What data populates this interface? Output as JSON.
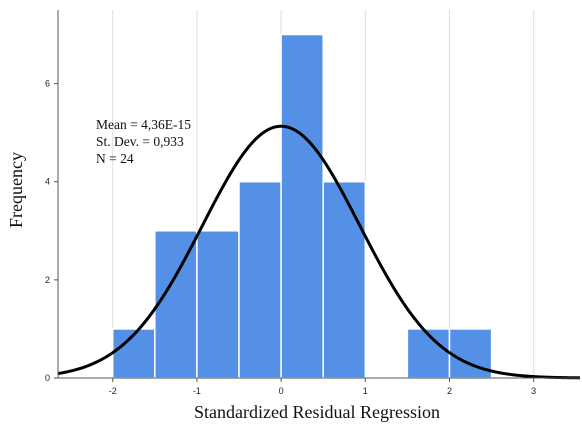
{
  "chart_data": {
    "type": "bar",
    "xlabel": "Standardized Residual Regression",
    "ylabel": "Frequency",
    "x_ticks": [
      "-2",
      "-1",
      "0",
      "1",
      "2",
      "3"
    ],
    "y_ticks": [
      "0",
      "2",
      "4",
      "6"
    ],
    "xlim": [
      -2.65,
      3.55
    ],
    "ylim": [
      0,
      7.5
    ],
    "grid": "vertical",
    "bar_color": "#5490e5",
    "curve_color": "#000000",
    "bins": [
      {
        "x0": -2.0,
        "x1": -1.5,
        "count": 1
      },
      {
        "x0": -1.5,
        "x1": -1.0,
        "count": 3
      },
      {
        "x0": -1.0,
        "x1": -0.5,
        "count": 3
      },
      {
        "x0": -0.5,
        "x1": 0.0,
        "count": 4
      },
      {
        "x0": 0.0,
        "x1": 0.5,
        "count": 7
      },
      {
        "x0": 0.5,
        "x1": 1.0,
        "count": 4
      },
      {
        "x0": 1.0,
        "x1": 1.5,
        "count": 0
      },
      {
        "x0": 1.5,
        "x1": 2.0,
        "count": 1
      },
      {
        "x0": 2.0,
        "x1": 2.5,
        "count": 1
      }
    ],
    "normal_curve": {
      "mean": 0.0,
      "sd": 0.933,
      "n": 24,
      "bin_width": 0.5
    },
    "stats": {
      "mean": "Mean = 4,36E-15",
      "sd": "St. Dev. = 0,933",
      "n": "N = 24"
    }
  }
}
